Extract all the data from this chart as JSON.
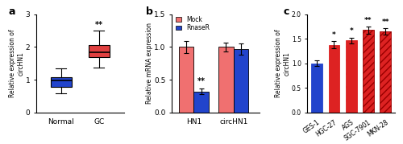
{
  "panel_a": {
    "label": "a",
    "ylabel": "Relative expression of\ncircHN1",
    "xlabels": [
      "Normal",
      "GC"
    ],
    "box_data": {
      "Normal": {
        "q1": 0.78,
        "median": 0.97,
        "q3": 1.08,
        "whislo": 0.58,
        "whishi": 1.35
      },
      "GC": {
        "q1": 1.68,
        "median": 1.85,
        "q3": 2.05,
        "whislo": 1.38,
        "whishi": 2.5
      }
    },
    "colors": [
      "#2244cc",
      "#e04040"
    ],
    "ylim": [
      0,
      3
    ],
    "yticks": [
      0,
      1,
      2,
      3
    ],
    "significance": {
      "GC": "**"
    }
  },
  "panel_b": {
    "label": "b",
    "ylabel": "Relative mRNA expression",
    "groups": [
      "HN1",
      "circHN1"
    ],
    "bars": {
      "Mock": [
        1.0,
        1.0
      ],
      "RnaseR": [
        0.32,
        0.97
      ]
    },
    "errors": {
      "Mock": [
        0.09,
        0.07
      ],
      "RnaseR": [
        0.04,
        0.09
      ]
    },
    "colors": {
      "Mock": "#f07070",
      "RnaseR": "#2244cc"
    },
    "ylim": [
      0,
      1.5
    ],
    "yticks": [
      0.0,
      0.5,
      1.0,
      1.5
    ],
    "significance": {
      "HN1_RnaseR": "**"
    }
  },
  "panel_c": {
    "label": "c",
    "ylabel": "Relative expression of\ncircHN1",
    "categories": [
      "GES-1",
      "HGC-27",
      "AGS",
      "SGC-7901",
      "MKN-28"
    ],
    "values": [
      1.0,
      1.38,
      1.47,
      1.68,
      1.65
    ],
    "errors": [
      0.06,
      0.07,
      0.06,
      0.07,
      0.07
    ],
    "face_colors": [
      "#2244cc",
      "#dd2222",
      "#dd2222",
      "#dd2222",
      "#dd2222"
    ],
    "hatch_colors": [
      "#2244cc",
      "#dd2222",
      "#dd2222",
      "#990000",
      "#990000"
    ],
    "hatches": [
      "",
      "",
      "..",
      "////",
      "////"
    ],
    "significance": [
      "",
      "*",
      "*",
      "**",
      "**"
    ],
    "ylim": [
      0,
      2.0
    ],
    "yticks": [
      0.0,
      0.5,
      1.0,
      1.5,
      2.0
    ]
  }
}
